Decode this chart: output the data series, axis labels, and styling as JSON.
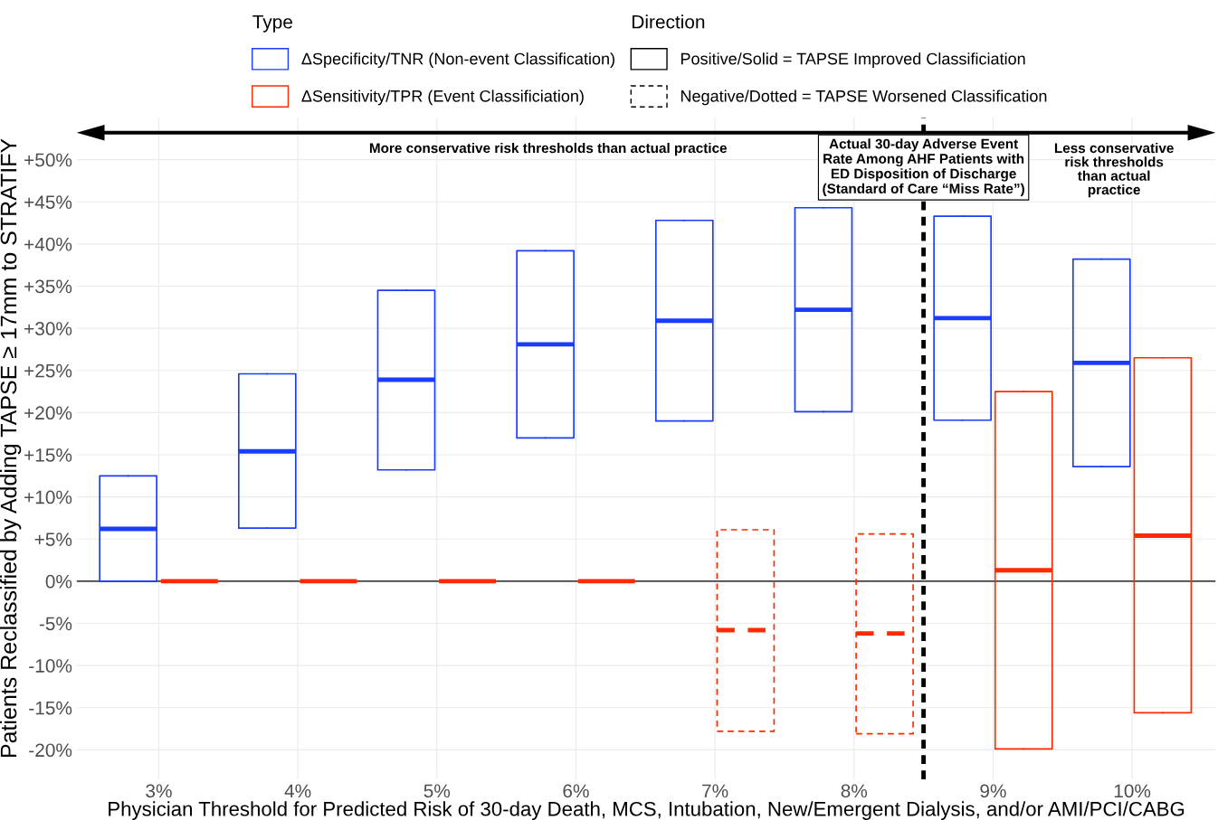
{
  "chart_data": {
    "type": "box",
    "xlabel": "Physician Threshold for Predicted Risk of 30-day Death, MCS, Intubation, New/Emergent Dialysis, and/or AMI/PCI/CABG",
    "ylabel": "Patients Reclassified by Adding TAPSE ≥ 17mm to STRATIFY",
    "legend_title": "Type",
    "x": [
      3,
      4,
      5,
      6,
      7,
      8,
      9,
      10
    ],
    "xlim": [
      2.41,
      10.6
    ],
    "xticks": [
      {
        "value": 3,
        "label": "3%"
      },
      {
        "value": 4,
        "label": "4%"
      },
      {
        "value": 5,
        "label": "5%"
      },
      {
        "value": 6,
        "label": "6%"
      },
      {
        "value": 7,
        "label": "7%"
      },
      {
        "value": 8,
        "label": "8%"
      },
      {
        "value": 9,
        "label": "9%"
      },
      {
        "value": 10,
        "label": "10%"
      }
    ],
    "ylim": [
      -23.5,
      55
    ],
    "yticks": [
      {
        "value": 50,
        "label": "+50%"
      },
      {
        "value": 45,
        "label": "+45%"
      },
      {
        "value": 40,
        "label": "+40%"
      },
      {
        "value": 35,
        "label": "+35%"
      },
      {
        "value": 30,
        "label": "+30%"
      },
      {
        "value": 25,
        "label": "+25%"
      },
      {
        "value": 20,
        "label": "+20%"
      },
      {
        "value": 15,
        "label": "+15%"
      },
      {
        "value": 10,
        "label": "+10%"
      },
      {
        "value": 5,
        "label": "+5%"
      },
      {
        "value": 0,
        "label": "0%"
      },
      {
        "value": -5,
        "label": "-5%"
      },
      {
        "value": -10,
        "label": "-10%"
      },
      {
        "value": -15,
        "label": "-15%"
      },
      {
        "value": -20,
        "label": "-20%"
      }
    ],
    "grid": true,
    "legend": "top",
    "series": [
      {
        "name": "ΔSpecificity/TNR (Non-event Classification)",
        "color": "#1a3cff",
        "line_style": "solid",
        "boxes": [
          {
            "low": 0,
            "q1": 0,
            "median": 6.2,
            "q3": 12.5,
            "high": 12.5
          },
          {
            "low": 6.3,
            "q1": 6.3,
            "median": 15.4,
            "q3": 24.6,
            "high": 24.6
          },
          {
            "low": 13.2,
            "q1": 13.2,
            "median": 23.9,
            "q3": 34.5,
            "high": 34.5
          },
          {
            "low": 17.0,
            "q1": 17.0,
            "median": 28.1,
            "q3": 39.2,
            "high": 39.2
          },
          {
            "low": 19.0,
            "q1": 19.0,
            "median": 30.9,
            "q3": 42.8,
            "high": 42.8
          },
          {
            "low": 20.1,
            "q1": 20.1,
            "median": 32.2,
            "q3": 44.3,
            "high": 44.3
          },
          {
            "low": 19.1,
            "q1": 19.1,
            "median": 31.2,
            "q3": 43.3,
            "high": 43.3
          },
          {
            "low": 13.6,
            "q1": 13.6,
            "median": 25.9,
            "q3": 38.2,
            "high": 38.2
          }
        ]
      },
      {
        "name": "ΔSensitivity/TPR (Event Classificiation)",
        "color": "#ff2a00",
        "line_style": "solid",
        "boxes": [
          {
            "low": 0,
            "q1": 0,
            "median": 0,
            "q3": 0,
            "high": 0
          },
          {
            "low": 0,
            "q1": 0,
            "median": 0,
            "q3": 0,
            "high": 0
          },
          {
            "low": 0,
            "q1": 0,
            "median": 0,
            "q3": 0,
            "high": 0
          },
          {
            "low": 0,
            "q1": 0,
            "median": 0,
            "q3": 0,
            "high": 0
          },
          null,
          null,
          {
            "low": -19.9,
            "q1": -19.9,
            "median": 1.3,
            "q3": 22.5,
            "high": 22.5
          },
          {
            "low": -15.6,
            "q1": -15.6,
            "median": 5.4,
            "q3": 26.5,
            "high": 26.5
          }
        ]
      },
      {
        "color": "#ff2a00",
        "line_style": "dashed",
        "boxes": [
          null,
          null,
          null,
          null,
          {
            "low": -17.8,
            "q1": -17.8,
            "median": -5.8,
            "q3": 6.1,
            "high": 6.1
          },
          {
            "low": -18.1,
            "q1": -18.1,
            "median": -6.2,
            "q3": 5.6,
            "high": 5.6
          },
          null,
          null
        ]
      }
    ],
    "ref_lines": [
      {
        "axis": "y",
        "value": 0,
        "color": "#000000",
        "line_style": "solid"
      },
      {
        "axis": "x",
        "value": 8.5,
        "color": "#000000",
        "line_style": "dashed",
        "label": "Actual 30-day Adverse Event\nRate Among AHF Patients with\nED Disposition of Discharge\n(Standard of Care “Miss Rate”)"
      }
    ],
    "annotations": [
      "More conservative risk thresholds than actual practice",
      "Less conservative\nrisk thresholds\nthan actual\npractice",
      "Direction",
      "Positive/Solid = TAPSE Improved Classificiation",
      "Negative/Dotted = TAPSE Worsened Classification"
    ]
  }
}
